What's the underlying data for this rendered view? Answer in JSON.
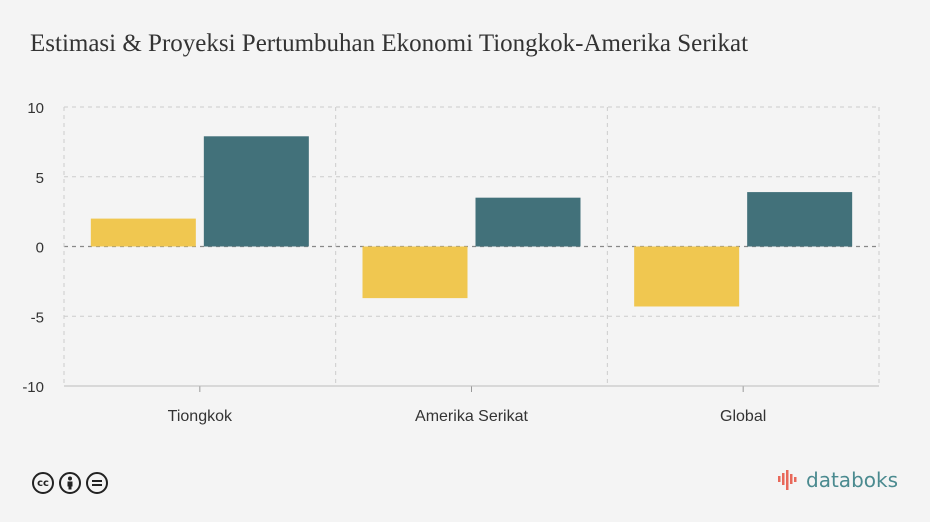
{
  "title": "Estimasi & Proyeksi Pertumbuhan Ekonomi Tiongkok-Amerika Serikat",
  "chart_data": {
    "type": "bar",
    "categories": [
      "Tiongkok",
      "Amerika Serikat",
      "Global"
    ],
    "series": [
      {
        "values": [
          2.0,
          -3.7,
          -4.3
        ],
        "color": "#f0c750"
      },
      {
        "values": [
          7.9,
          3.5,
          3.9
        ],
        "color": "#42717a"
      }
    ],
    "ylim": [
      -10,
      10
    ],
    "yticks": [
      10,
      5,
      0,
      -5,
      -10
    ],
    "ytick_labels": [
      "10",
      "5",
      "0",
      "-5",
      "-10"
    ],
    "grid": true,
    "legend": "none"
  },
  "footer": {
    "license_icons": [
      "cc-icon",
      "by-icon",
      "nd-icon"
    ],
    "brand": "databoks",
    "brand_color": "#4a8a8f"
  }
}
